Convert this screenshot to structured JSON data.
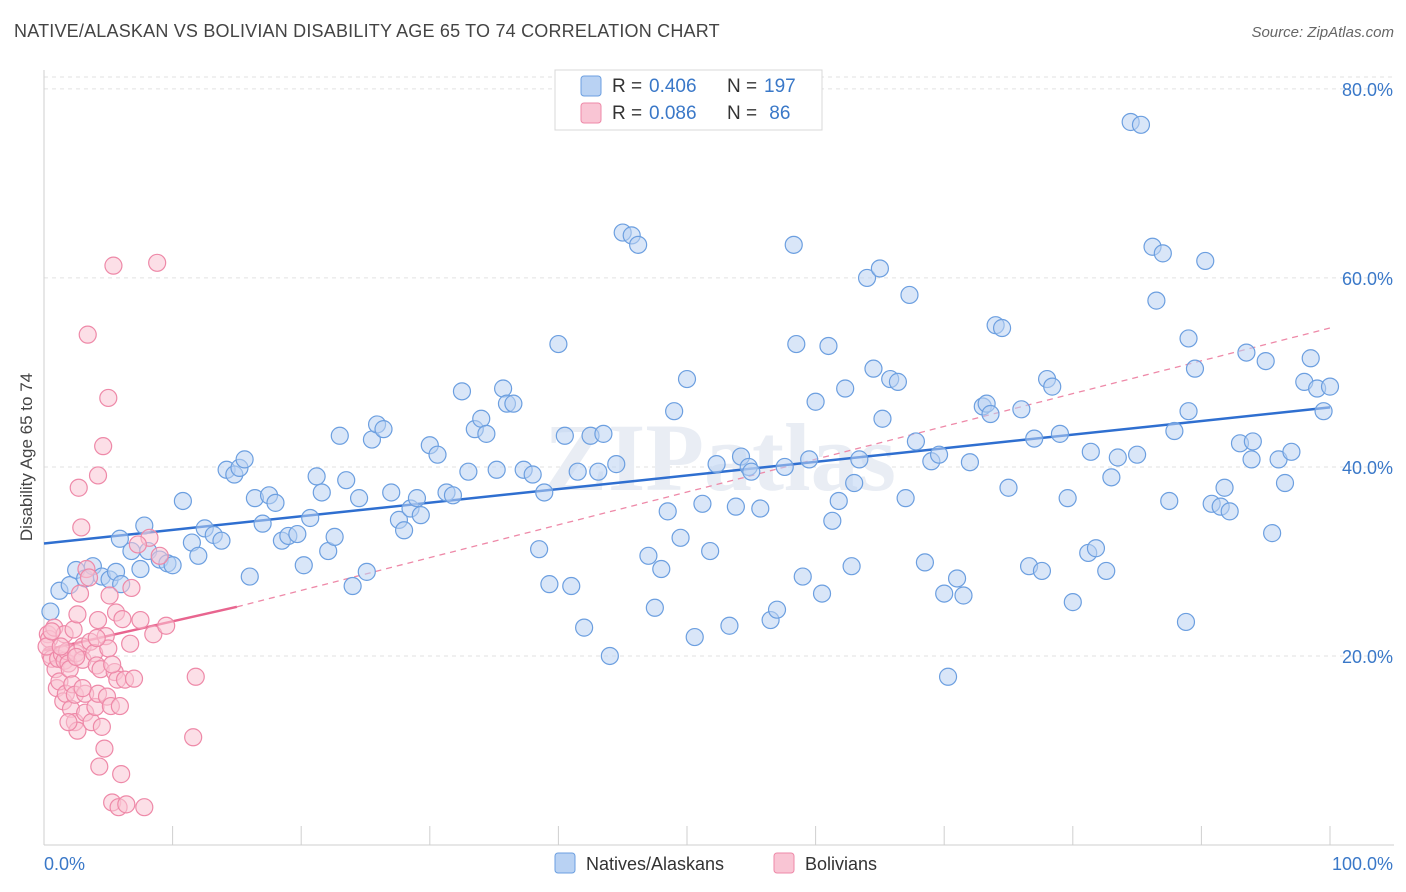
{
  "title": "NATIVE/ALASKAN VS BOLIVIAN DISABILITY AGE 65 TO 74 CORRELATION CHART",
  "source": "Source: ZipAtlas.com",
  "legend_top": [
    {
      "r_label": "R = ",
      "r_value": "0.406",
      "n_label": "N = ",
      "n_value": "197",
      "color": "#6c9fe0",
      "fill": "#b9d2f3"
    },
    {
      "r_label": "R = ",
      "r_value": "0.086",
      "n_label": "N = ",
      "n_value": " 86",
      "color": "#ee89a8",
      "fill": "#f9c5d4"
    }
  ],
  "legend_bottom": [
    "Natives/Alaskans",
    "Bolivians"
  ],
  "watermark": "ZIPatlas",
  "chart_data": {
    "type": "scatter",
    "title": "NATIVE/ALASKAN VS BOLIVIAN DISABILITY AGE 65 TO 74 CORRELATION CHART",
    "xlabel": "",
    "ylabel": "Disability Age 65 to 74",
    "xlim": [
      0,
      100
    ],
    "ylim": [
      0,
      82
    ],
    "x_tick_labels": [
      "0.0%",
      "100.0%"
    ],
    "y_ticks": [
      20,
      40,
      60,
      80
    ],
    "y_tick_labels": [
      "20.0%",
      "40.0%",
      "60.0%",
      "80.0%"
    ],
    "grid": true,
    "series": [
      {
        "name": "Natives/Alaskans",
        "color": "#6c9fe0",
        "fill": "#b9d2f3",
        "trend": {
          "x": [
            0,
            100
          ],
          "y": [
            31.9,
            46.3
          ],
          "style": "solid"
        },
        "points": [
          [
            0.5,
            24.7
          ],
          [
            1.2,
            26.9
          ],
          [
            2,
            27.5
          ],
          [
            2.5,
            29.1
          ],
          [
            3.2,
            28.2
          ],
          [
            3.8,
            29.5
          ],
          [
            4.5,
            28.4
          ],
          [
            5.1,
            28.1
          ],
          [
            5.6,
            28.9
          ],
          [
            6,
            27.6
          ],
          [
            5.9,
            32.4
          ],
          [
            6.8,
            31.1
          ],
          [
            7.5,
            29.2
          ],
          [
            7.8,
            33.8
          ],
          [
            8.1,
            31.1
          ],
          [
            9,
            30.2
          ],
          [
            9.6,
            29.8
          ],
          [
            10,
            29.6
          ],
          [
            10.8,
            36.4
          ],
          [
            11.5,
            32.0
          ],
          [
            12,
            30.6
          ],
          [
            12.5,
            33.5
          ],
          [
            13.2,
            32.8
          ],
          [
            13.8,
            32.2
          ],
          [
            14.2,
            39.7
          ],
          [
            14.8,
            39.2
          ],
          [
            15.2,
            39.9
          ],
          [
            15.6,
            40.8
          ],
          [
            16,
            28.4
          ],
          [
            16.4,
            36.7
          ],
          [
            17,
            34.0
          ],
          [
            17.5,
            37.0
          ],
          [
            18,
            36.2
          ],
          [
            18.5,
            32.2
          ],
          [
            19,
            32.7
          ],
          [
            19.7,
            32.9
          ],
          [
            20.2,
            29.6
          ],
          [
            20.7,
            34.6
          ],
          [
            21.2,
            39.0
          ],
          [
            21.6,
            37.3
          ],
          [
            22.1,
            31.1
          ],
          [
            22.6,
            32.6
          ],
          [
            23,
            43.3
          ],
          [
            23.5,
            38.6
          ],
          [
            24,
            27.4
          ],
          [
            24.5,
            36.7
          ],
          [
            25.1,
            28.9
          ],
          [
            25.5,
            42.9
          ],
          [
            25.9,
            44.5
          ],
          [
            26.4,
            44.0
          ],
          [
            27,
            37.3
          ],
          [
            27.6,
            34.4
          ],
          [
            28,
            33.3
          ],
          [
            28.5,
            35.6
          ],
          [
            29,
            36.7
          ],
          [
            29.3,
            34.9
          ],
          [
            30,
            42.3
          ],
          [
            30.6,
            41.3
          ],
          [
            31.3,
            37.3
          ],
          [
            31.8,
            37.0
          ],
          [
            32.5,
            48.0
          ],
          [
            33,
            39.5
          ],
          [
            33.5,
            44.0
          ],
          [
            34,
            45.1
          ],
          [
            34.4,
            43.5
          ],
          [
            35.2,
            39.7
          ],
          [
            35.7,
            48.3
          ],
          [
            36,
            46.7
          ],
          [
            36.5,
            46.7
          ],
          [
            37.3,
            39.7
          ],
          [
            38,
            39.2
          ],
          [
            38.5,
            31.3
          ],
          [
            38.9,
            37.3
          ],
          [
            39.3,
            27.6
          ],
          [
            40,
            53.0
          ],
          [
            40.5,
            43.3
          ],
          [
            41,
            27.4
          ],
          [
            41.5,
            39.5
          ],
          [
            42,
            23.0
          ],
          [
            42.5,
            43.3
          ],
          [
            43.1,
            39.5
          ],
          [
            43.5,
            43.5
          ],
          [
            44,
            20.0
          ],
          [
            44.5,
            40.3
          ],
          [
            45,
            64.8
          ],
          [
            45.7,
            64.5
          ],
          [
            46.2,
            63.5
          ],
          [
            47,
            30.6
          ],
          [
            47.5,
            25.1
          ],
          [
            48,
            29.2
          ],
          [
            48.5,
            35.3
          ],
          [
            49,
            45.9
          ],
          [
            49.5,
            32.5
          ],
          [
            50,
            49.3
          ],
          [
            50.6,
            22.0
          ],
          [
            51.2,
            36.1
          ],
          [
            51.8,
            31.1
          ],
          [
            52.3,
            40.3
          ],
          [
            53.3,
            23.2
          ],
          [
            53.8,
            35.8
          ],
          [
            54.2,
            41.1
          ],
          [
            54.8,
            40.0
          ],
          [
            55,
            39.5
          ],
          [
            55.7,
            35.6
          ],
          [
            56.5,
            23.8
          ],
          [
            57,
            24.9
          ],
          [
            57.6,
            40.0
          ],
          [
            58.3,
            63.5
          ],
          [
            58.5,
            53.0
          ],
          [
            59,
            28.4
          ],
          [
            59.5,
            40.8
          ],
          [
            60,
            46.9
          ],
          [
            60.5,
            26.6
          ],
          [
            61,
            52.8
          ],
          [
            61.3,
            34.3
          ],
          [
            61.8,
            36.4
          ],
          [
            62.3,
            48.3
          ],
          [
            62.8,
            29.5
          ],
          [
            63,
            38.3
          ],
          [
            63.4,
            40.8
          ],
          [
            64,
            60.0
          ],
          [
            64.5,
            50.4
          ],
          [
            65,
            61.0
          ],
          [
            65.2,
            45.1
          ],
          [
            65.8,
            49.3
          ],
          [
            66.4,
            49.0
          ],
          [
            67,
            36.7
          ],
          [
            67.3,
            58.2
          ],
          [
            67.8,
            42.7
          ],
          [
            68.5,
            29.9
          ],
          [
            69,
            40.6
          ],
          [
            69.6,
            41.3
          ],
          [
            70,
            26.6
          ],
          [
            70.3,
            17.8
          ],
          [
            71,
            28.2
          ],
          [
            71.5,
            26.4
          ],
          [
            72,
            40.5
          ],
          [
            73,
            46.4
          ],
          [
            73.3,
            46.7
          ],
          [
            73.6,
            45.6
          ],
          [
            74,
            55.0
          ],
          [
            74.5,
            54.7
          ],
          [
            75,
            37.8
          ],
          [
            76,
            46.1
          ],
          [
            76.6,
            29.5
          ],
          [
            77,
            43.0
          ],
          [
            77.6,
            29.0
          ],
          [
            78,
            49.3
          ],
          [
            78.4,
            48.5
          ],
          [
            79,
            43.5
          ],
          [
            79.6,
            36.7
          ],
          [
            80,
            25.7
          ],
          [
            81.2,
            30.9
          ],
          [
            81.4,
            41.6
          ],
          [
            81.8,
            31.4
          ],
          [
            82.6,
            29.0
          ],
          [
            83,
            38.9
          ],
          [
            83.5,
            41.0
          ],
          [
            84.5,
            76.5
          ],
          [
            85,
            41.3
          ],
          [
            85.3,
            76.2
          ],
          [
            86.2,
            63.3
          ],
          [
            86.5,
            57.6
          ],
          [
            87,
            62.6
          ],
          [
            87.5,
            36.4
          ],
          [
            87.9,
            43.8
          ],
          [
            88.8,
            23.6
          ],
          [
            89,
            45.9
          ],
          [
            89,
            53.6
          ],
          [
            89.5,
            50.4
          ],
          [
            90.3,
            61.8
          ],
          [
            90.8,
            36.1
          ],
          [
            91.5,
            35.8
          ],
          [
            91.8,
            37.8
          ],
          [
            92.2,
            35.3
          ],
          [
            93,
            42.5
          ],
          [
            93.5,
            52.1
          ],
          [
            93.9,
            40.8
          ],
          [
            94,
            42.7
          ],
          [
            95,
            51.2
          ],
          [
            95.5,
            33.0
          ],
          [
            96,
            40.8
          ],
          [
            96.5,
            38.3
          ],
          [
            97,
            41.6
          ],
          [
            98,
            49.0
          ],
          [
            98.5,
            51.5
          ],
          [
            99,
            48.3
          ],
          [
            99.5,
            45.9
          ],
          [
            100,
            48.5
          ]
        ]
      },
      {
        "name": "Bolivians",
        "color": "#ee89a8",
        "fill": "#f9c5d4",
        "trend": {
          "x": [
            0,
            15
          ],
          "y": [
            20.6,
            25.2
          ],
          "style": "solid"
        },
        "trend_extended": {
          "x": [
            15,
            100
          ],
          "y": [
            25.2,
            54.7
          ],
          "style": "dashed"
        },
        "points": [
          [
            0.3,
            22.3
          ],
          [
            0.4,
            21.8
          ],
          [
            0.5,
            20.1
          ],
          [
            0.6,
            19.7
          ],
          [
            0.8,
            23.0
          ],
          [
            0.9,
            18.6
          ],
          [
            1,
            16.6
          ],
          [
            1.1,
            19.7
          ],
          [
            1.2,
            17.3
          ],
          [
            1.4,
            20.2
          ],
          [
            1.5,
            15.2
          ],
          [
            1.6,
            22.3
          ],
          [
            1.6,
            19.5
          ],
          [
            1.7,
            16.0
          ],
          [
            1.8,
            20.5
          ],
          [
            1.9,
            19.2
          ],
          [
            2,
            18.6
          ],
          [
            2.1,
            14.4
          ],
          [
            2.2,
            17.0
          ],
          [
            2.3,
            22.8
          ],
          [
            2.4,
            15.9
          ],
          [
            2.4,
            13.0
          ],
          [
            2.5,
            20.3
          ],
          [
            2.6,
            24.4
          ],
          [
            2.6,
            12.1
          ],
          [
            2.7,
            37.8
          ],
          [
            2.8,
            26.6
          ],
          [
            2.9,
            33.6
          ],
          [
            3,
            21.0
          ],
          [
            3,
            19.6
          ],
          [
            3.2,
            14.0
          ],
          [
            3.2,
            16.0
          ],
          [
            3.3,
            29.2
          ],
          [
            3.4,
            54.0
          ],
          [
            3.6,
            21.5
          ],
          [
            3.7,
            13.0
          ],
          [
            3.9,
            20.3
          ],
          [
            4,
            14.6
          ],
          [
            4.1,
            19.0
          ],
          [
            4.2,
            16.0
          ],
          [
            4.2,
            23.8
          ],
          [
            4.2,
            39.1
          ],
          [
            4.3,
            8.3
          ],
          [
            4.4,
            18.6
          ],
          [
            4.5,
            12.5
          ],
          [
            4.6,
            42.2
          ],
          [
            4.7,
            10.2
          ],
          [
            4.8,
            22.1
          ],
          [
            4.9,
            15.7
          ],
          [
            5,
            47.3
          ],
          [
            5,
            20.8
          ],
          [
            5.1,
            26.4
          ],
          [
            5.2,
            14.7
          ],
          [
            5.3,
            4.5
          ],
          [
            5.4,
            61.3
          ],
          [
            5.5,
            18.3
          ],
          [
            5.6,
            24.6
          ],
          [
            5.7,
            17.5
          ],
          [
            5.8,
            4.0
          ],
          [
            5.9,
            14.7
          ],
          [
            6,
            7.5
          ],
          [
            6.3,
            17.5
          ],
          [
            6.4,
            4.3
          ],
          [
            6.7,
            21.3
          ],
          [
            6.8,
            27.2
          ],
          [
            7,
            17.6
          ],
          [
            7.5,
            23.8
          ],
          [
            7.8,
            4.0
          ],
          [
            8.2,
            32.5
          ],
          [
            8.5,
            22.3
          ],
          [
            8.8,
            61.6
          ],
          [
            9,
            30.6
          ],
          [
            9.5,
            23.2
          ],
          [
            11.6,
            11.4
          ],
          [
            11.8,
            17.8
          ],
          [
            0.2,
            21.0
          ],
          [
            0.6,
            22.6
          ],
          [
            1.3,
            21.0
          ],
          [
            1.9,
            13.0
          ],
          [
            2.5,
            19.9
          ],
          [
            3,
            16.6
          ],
          [
            3.5,
            28.3
          ],
          [
            4.1,
            21.9
          ],
          [
            5.3,
            19.1
          ],
          [
            6.1,
            23.9
          ],
          [
            7.3,
            31.8
          ]
        ]
      }
    ]
  }
}
